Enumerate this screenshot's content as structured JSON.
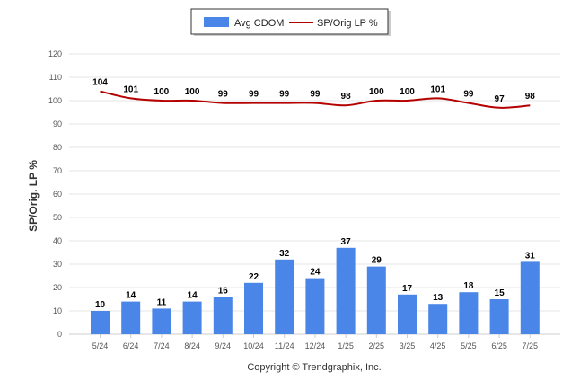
{
  "chart_data": {
    "type": "bar",
    "categories": [
      "5/24",
      "6/24",
      "7/24",
      "8/24",
      "9/24",
      "10/24",
      "11/24",
      "12/24",
      "1/25",
      "2/25",
      "3/25",
      "4/25",
      "5/25",
      "6/25",
      "7/25"
    ],
    "series": [
      {
        "name": "Avg CDOM",
        "type": "bar",
        "color": "#4a86e8",
        "values": [
          10,
          14,
          11,
          14,
          16,
          22,
          32,
          24,
          37,
          29,
          17,
          13,
          18,
          15,
          31
        ]
      },
      {
        "name": "SP/Orig LP %",
        "type": "line",
        "color": "#b50000",
        "values": [
          104,
          101,
          100,
          100,
          99,
          99,
          99,
          99,
          98,
          100,
          100,
          101,
          99,
          97,
          98
        ]
      }
    ],
    "ylabel": "SP/Orig. LP %",
    "xlabel": "",
    "ylim": [
      0,
      120
    ],
    "yticks": [
      0,
      10,
      20,
      30,
      40,
      50,
      60,
      70,
      80,
      90,
      100,
      110,
      120
    ],
    "grid": true,
    "legend": "top-center",
    "footer": "Copyright © Trendgraphix, Inc."
  }
}
